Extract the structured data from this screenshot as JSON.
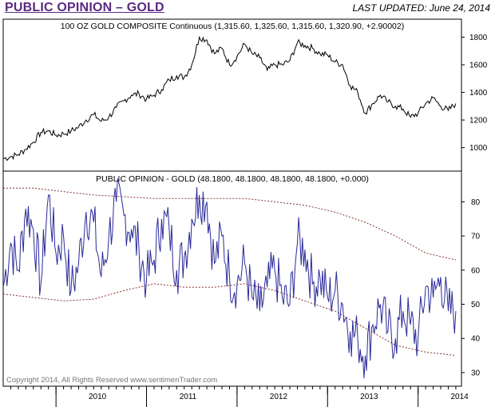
{
  "header": {
    "title": "PUBLIC OPINION – GOLD",
    "updated": "LAST UPDATED:   June 24, 2014"
  },
  "copyright": "Copyright 2014, All Rights Reserved  www.sentimenTrader.com",
  "colors": {
    "price": "#000000",
    "opinion": "#2a2a9a",
    "band": "#8b3030",
    "title": "#5a2a82"
  },
  "chart_data": [
    {
      "type": "line",
      "title": "100 OZ GOLD COMPOSITE Continuous (1,315.60, 1,325.60, 1,315.60, 1,320.90, +2.90002)",
      "y_ticks": [
        "1000",
        "1200",
        "1400",
        "1600",
        "1800"
      ],
      "ylim": [
        830,
        1930
      ],
      "x_ticks": [
        "2010",
        "2011",
        "2012",
        "2013",
        "2014"
      ],
      "series": [
        {
          "x": [
            "2009-06",
            "2009-07",
            "2009-08",
            "2009-09",
            "2009-10",
            "2009-11",
            "2009-12",
            "2010-01",
            "2010-02",
            "2010-03",
            "2010-04",
            "2010-05",
            "2010-06",
            "2010-07",
            "2010-08",
            "2010-09",
            "2010-10",
            "2010-11",
            "2010-12",
            "2011-01",
            "2011-02",
            "2011-03",
            "2011-04",
            "2011-05",
            "2011-06",
            "2011-07",
            "2011-08",
            "2011-09",
            "2011-10",
            "2011-11",
            "2011-12",
            "2012-01",
            "2012-02",
            "2012-03",
            "2012-04",
            "2012-05",
            "2012-06",
            "2012-07",
            "2012-08",
            "2012-09",
            "2012-10",
            "2012-11",
            "2012-12",
            "2013-01",
            "2013-02",
            "2013-03",
            "2013-04",
            "2013-05",
            "2013-06",
            "2013-07",
            "2013-08",
            "2013-09",
            "2013-10",
            "2013-11",
            "2013-12",
            "2014-01",
            "2014-02",
            "2014-03",
            "2014-04",
            "2014-05",
            "2014-06"
          ],
          "values": [
            920,
            935,
            950,
            990,
            1040,
            1110,
            1120,
            1090,
            1100,
            1120,
            1150,
            1200,
            1240,
            1190,
            1220,
            1290,
            1340,
            1380,
            1390,
            1350,
            1380,
            1420,
            1490,
            1520,
            1510,
            1600,
            1800,
            1780,
            1680,
            1720,
            1600,
            1660,
            1750,
            1680,
            1650,
            1560,
            1600,
            1600,
            1630,
            1760,
            1740,
            1720,
            1680,
            1670,
            1620,
            1600,
            1450,
            1400,
            1250,
            1320,
            1380,
            1330,
            1300,
            1280,
            1220,
            1250,
            1320,
            1360,
            1300,
            1270,
            1320
          ]
        }
      ]
    },
    {
      "type": "line",
      "title": "PUBLIC OPINION - GOLD (48.1800, 48.1800, 48.1800, 48.1800, +0.000)",
      "y_ticks": [
        "30",
        "40",
        "50",
        "60",
        "70",
        "80"
      ],
      "ylim": [
        26,
        89
      ],
      "x_ticks": [
        "2010",
        "2011",
        "2012",
        "2013",
        "2014"
      ],
      "series": [
        {
          "x": [
            "2009-06",
            "2009-07",
            "2009-08",
            "2009-09",
            "2009-10",
            "2009-11",
            "2009-12",
            "2010-01",
            "2010-02",
            "2010-03",
            "2010-04",
            "2010-05",
            "2010-06",
            "2010-07",
            "2010-08",
            "2010-09",
            "2010-10",
            "2010-11",
            "2010-12",
            "2011-01",
            "2011-02",
            "2011-03",
            "2011-04",
            "2011-05",
            "2011-06",
            "2011-07",
            "2011-08",
            "2011-09",
            "2011-10",
            "2011-11",
            "2011-12",
            "2012-01",
            "2012-02",
            "2012-03",
            "2012-04",
            "2012-05",
            "2012-06",
            "2012-07",
            "2012-08",
            "2012-09",
            "2012-10",
            "2012-11",
            "2012-12",
            "2013-01",
            "2013-02",
            "2013-03",
            "2013-04",
            "2013-05",
            "2013-06",
            "2013-07",
            "2013-08",
            "2013-09",
            "2013-10",
            "2013-11",
            "2013-12",
            "2014-01",
            "2014-02",
            "2014-03",
            "2014-04",
            "2014-05",
            "2014-06"
          ],
          "values": [
            55,
            68,
            60,
            78,
            72,
            56,
            82,
            65,
            70,
            54,
            62,
            77,
            74,
            58,
            70,
            80,
            76,
            72,
            66,
            57,
            63,
            75,
            72,
            60,
            64,
            75,
            82,
            80,
            62,
            70,
            58,
            56,
            62,
            52,
            48,
            55,
            60,
            52,
            50,
            68,
            66,
            56,
            58,
            52,
            54,
            50,
            42,
            40,
            35,
            44,
            50,
            42,
            40,
            48,
            44,
            40,
            55,
            52,
            58,
            48,
            48
          ]
        },
        {
          "x": [
            "2009-06",
            "2009-10",
            "2010-02",
            "2010-06",
            "2010-10",
            "2011-02",
            "2011-06",
            "2011-10",
            "2012-02",
            "2012-06",
            "2012-10",
            "2013-02",
            "2013-06",
            "2013-10",
            "2014-02",
            "2014-06"
          ],
          "values": [
            84,
            84,
            83,
            82,
            81.5,
            81,
            81,
            81,
            81,
            80,
            79,
            77,
            74,
            70,
            65,
            63
          ]
        },
        {
          "x": [
            "2009-06",
            "2009-10",
            "2010-02",
            "2010-06",
            "2010-10",
            "2011-02",
            "2011-06",
            "2011-10",
            "2012-02",
            "2012-06",
            "2012-10",
            "2013-02",
            "2013-06",
            "2013-10",
            "2014-02",
            "2014-06"
          ],
          "values": [
            53,
            52,
            51,
            51.5,
            54,
            56,
            55,
            55,
            56,
            54,
            51,
            48,
            43,
            38,
            36,
            35
          ]
        }
      ]
    }
  ]
}
